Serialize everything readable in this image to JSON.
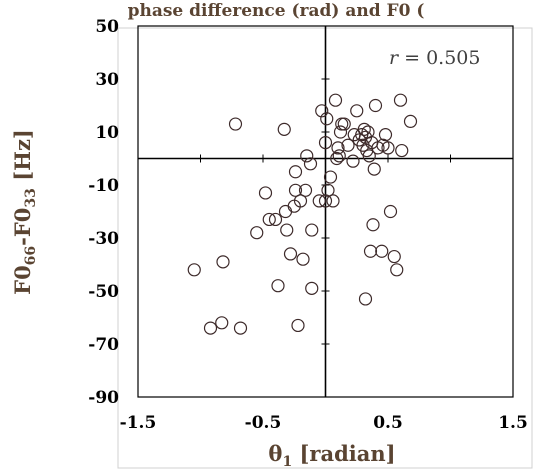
{
  "chart_data": {
    "type": "scatter",
    "title": "",
    "header_fragment": "phase difference (rad) and F0 (",
    "xlabel": {
      "base": "θ",
      "sub": "1",
      "rest": " [radian]"
    },
    "ylabel": {
      "base": "F0",
      "sub1": "66",
      "mid": "-F0",
      "sub2": "33",
      "rest": " [Hz]"
    },
    "xlim": [
      -1.5,
      1.5
    ],
    "ylim": [
      -90,
      50
    ],
    "x_ticks": [
      "-1.5",
      "-0.5",
      "0.5",
      "1.5"
    ],
    "x_tick_values": [
      -1.5,
      -0.5,
      0.5,
      1.5
    ],
    "y_ticks": [
      "50",
      "30",
      "10",
      "-10",
      "-30",
      "-50",
      "-70",
      "-90"
    ],
    "y_tick_values": [
      50,
      30,
      10,
      -10,
      -30,
      -50,
      -70,
      -90
    ],
    "grid": false,
    "annotation": {
      "var": "r",
      "text": " = 0.505"
    },
    "points": [
      {
        "x": -1.05,
        "y": -42
      },
      {
        "x": -0.92,
        "y": -64
      },
      {
        "x": -0.83,
        "y": -62
      },
      {
        "x": -0.82,
        "y": -39
      },
      {
        "x": -0.72,
        "y": 13
      },
      {
        "x": -0.68,
        "y": -64
      },
      {
        "x": -0.55,
        "y": -28
      },
      {
        "x": -0.48,
        "y": -13
      },
      {
        "x": -0.45,
        "y": -23
      },
      {
        "x": -0.4,
        "y": -23
      },
      {
        "x": -0.38,
        "y": -48
      },
      {
        "x": -0.33,
        "y": 11
      },
      {
        "x": -0.32,
        "y": -20
      },
      {
        "x": -0.31,
        "y": -27
      },
      {
        "x": -0.28,
        "y": -36
      },
      {
        "x": -0.25,
        "y": -18
      },
      {
        "x": -0.24,
        "y": -12
      },
      {
        "x": -0.24,
        "y": -5
      },
      {
        "x": -0.22,
        "y": -63
      },
      {
        "x": -0.2,
        "y": -16
      },
      {
        "x": -0.18,
        "y": -38
      },
      {
        "x": -0.16,
        "y": -12
      },
      {
        "x": -0.15,
        "y": 1
      },
      {
        "x": -0.12,
        "y": -2
      },
      {
        "x": -0.11,
        "y": -27
      },
      {
        "x": -0.11,
        "y": -49
      },
      {
        "x": -0.05,
        "y": -16
      },
      {
        "x": -0.03,
        "y": 18
      },
      {
        "x": 0.0,
        "y": -16
      },
      {
        "x": 0.0,
        "y": 6
      },
      {
        "x": 0.01,
        "y": 15
      },
      {
        "x": 0.02,
        "y": -12
      },
      {
        "x": 0.04,
        "y": -7
      },
      {
        "x": 0.06,
        "y": -16
      },
      {
        "x": 0.08,
        "y": 22
      },
      {
        "x": 0.09,
        "y": 0
      },
      {
        "x": 0.1,
        "y": 4
      },
      {
        "x": 0.11,
        "y": 1
      },
      {
        "x": 0.12,
        "y": 10
      },
      {
        "x": 0.13,
        "y": 13
      },
      {
        "x": 0.15,
        "y": 13
      },
      {
        "x": 0.18,
        "y": 5
      },
      {
        "x": 0.22,
        "y": -1
      },
      {
        "x": 0.23,
        "y": 9
      },
      {
        "x": 0.25,
        "y": 18
      },
      {
        "x": 0.27,
        "y": 7
      },
      {
        "x": 0.29,
        "y": 9
      },
      {
        "x": 0.3,
        "y": 5
      },
      {
        "x": 0.31,
        "y": 11
      },
      {
        "x": 0.32,
        "y": 8
      },
      {
        "x": 0.32,
        "y": -53
      },
      {
        "x": 0.33,
        "y": 3
      },
      {
        "x": 0.34,
        "y": 10
      },
      {
        "x": 0.35,
        "y": 1
      },
      {
        "x": 0.36,
        "y": -35
      },
      {
        "x": 0.37,
        "y": 6
      },
      {
        "x": 0.38,
        "y": -25
      },
      {
        "x": 0.39,
        "y": -4
      },
      {
        "x": 0.4,
        "y": 20
      },
      {
        "x": 0.42,
        "y": 4
      },
      {
        "x": 0.45,
        "y": -35
      },
      {
        "x": 0.46,
        "y": 5
      },
      {
        "x": 0.48,
        "y": 9
      },
      {
        "x": 0.5,
        "y": 4
      },
      {
        "x": 0.52,
        "y": -20
      },
      {
        "x": 0.55,
        "y": -37
      },
      {
        "x": 0.57,
        "y": -42
      },
      {
        "x": 0.6,
        "y": 22
      },
      {
        "x": 0.61,
        "y": 3
      },
      {
        "x": 0.68,
        "y": 14
      }
    ]
  }
}
